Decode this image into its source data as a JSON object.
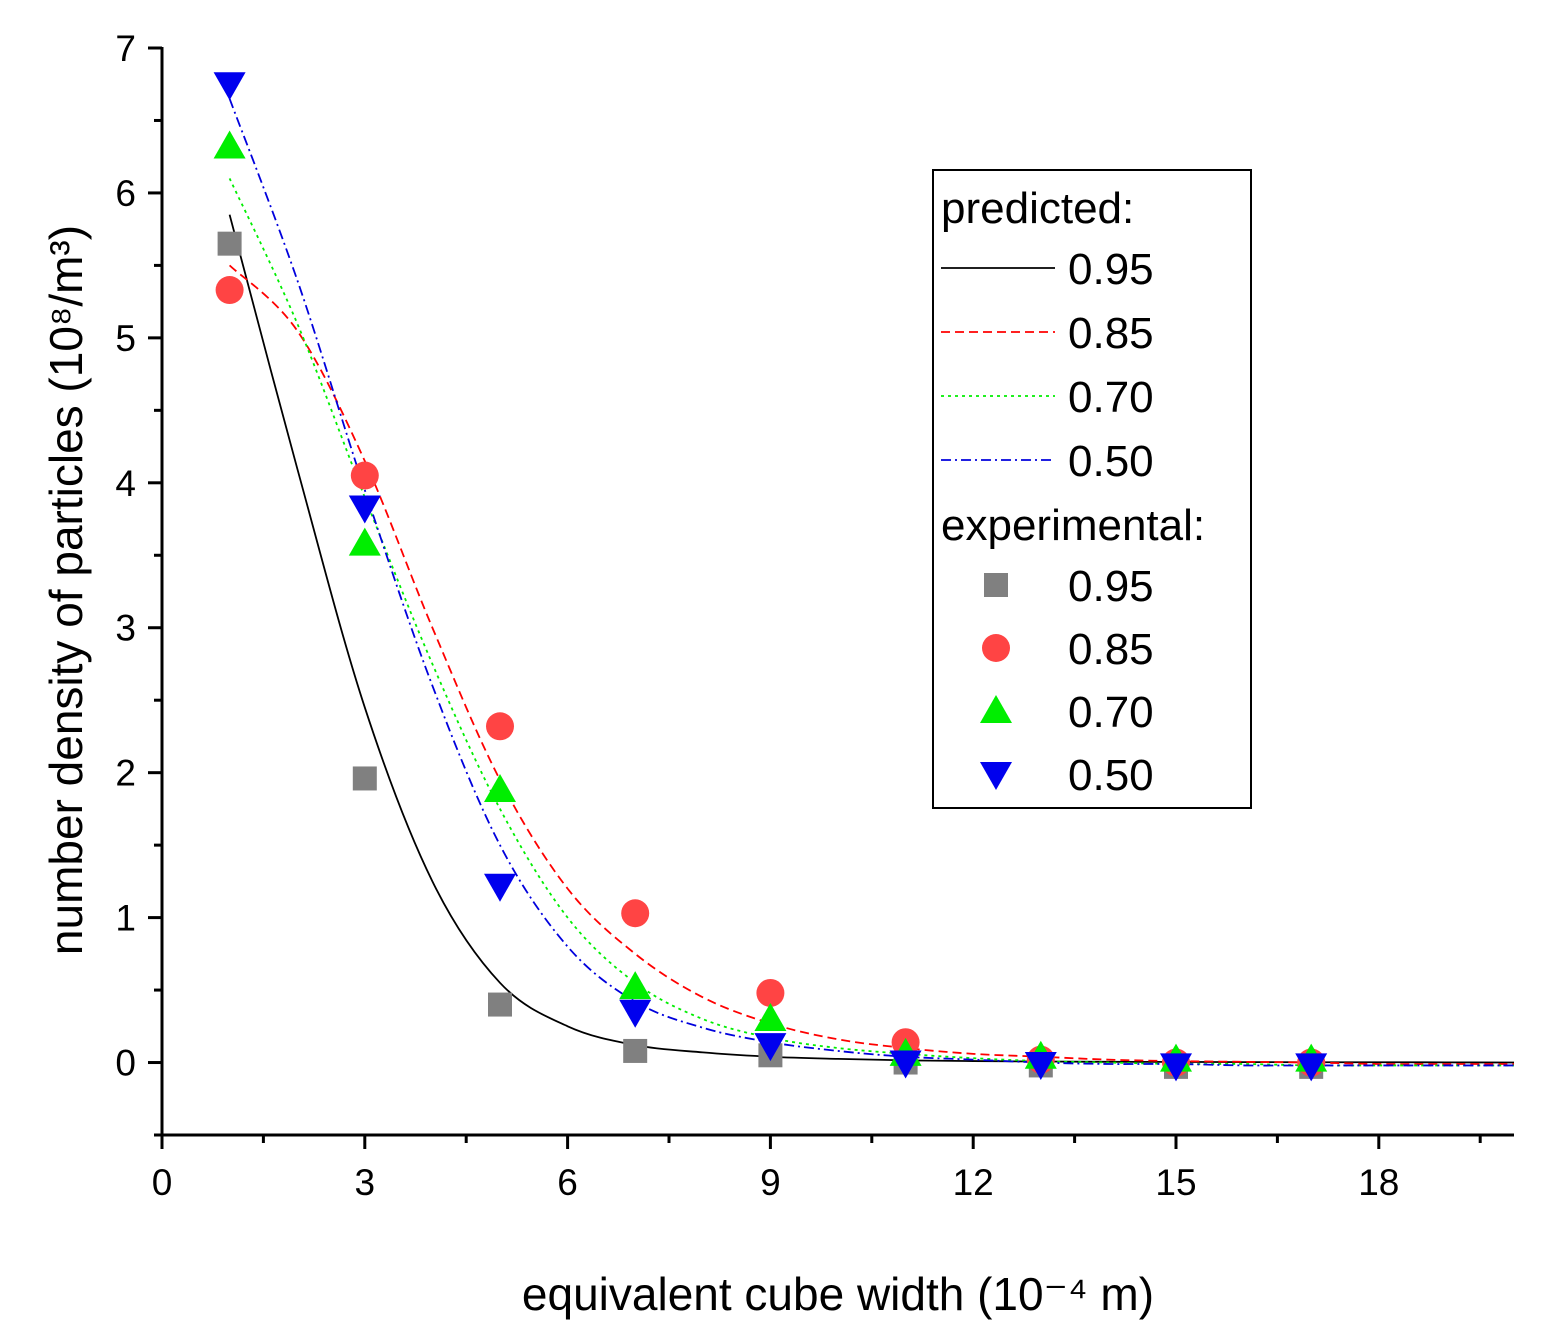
{
  "chart_data": {
    "type": "scatter",
    "title": "",
    "xlabel": "equivalent cube width (10⁻⁴ m)",
    "ylabel": "number density of particles (10⁸/m³)",
    "xlim": [
      0,
      20
    ],
    "ylim": [
      -0.5,
      7
    ],
    "xticks": [
      0,
      3,
      6,
      9,
      12,
      15,
      18
    ],
    "yticks": [
      0,
      1,
      2,
      3,
      4,
      5,
      6,
      7
    ],
    "xtick_labels": [
      "0",
      "3",
      "6",
      "9",
      "12",
      "15",
      "18"
    ],
    "ytick_labels": [
      "0",
      "1",
      "2",
      "3",
      "4",
      "5",
      "6",
      "7"
    ],
    "grid": false,
    "legend_position": "top-right",
    "legend": {
      "predicted_header": "predicted:",
      "experimental_header": "experimental:"
    },
    "predicted": [
      {
        "name": "0.95",
        "color": "#000000",
        "style": "solid",
        "x": [
          1,
          2,
          3,
          4,
          5,
          6,
          7,
          8,
          9,
          10,
          11,
          12,
          13,
          14,
          15,
          16,
          17,
          18,
          19,
          20
        ],
        "y": [
          5.85,
          4.1,
          2.45,
          1.25,
          0.55,
          0.25,
          0.12,
          0.07,
          0.04,
          0.025,
          0.015,
          0.01,
          0.007,
          0.005,
          0.004,
          0.003,
          0.002,
          0.002,
          0.001,
          0.0
        ]
      },
      {
        "name": "0.85",
        "color": "#ff0000",
        "style": "dashed",
        "x": [
          1,
          2,
          3,
          4,
          5,
          6,
          7,
          8,
          9,
          10,
          11,
          12,
          13,
          14,
          15,
          16,
          17,
          18,
          19,
          20
        ],
        "y": [
          5.5,
          5.05,
          4.15,
          3.0,
          1.95,
          1.2,
          0.75,
          0.45,
          0.27,
          0.16,
          0.1,
          0.06,
          0.04,
          0.02,
          0.01,
          0.005,
          0.0,
          -0.01,
          -0.01,
          -0.01
        ]
      },
      {
        "name": "0.70",
        "color": "#00ee00",
        "style": "dotted",
        "x": [
          1,
          2,
          3,
          4,
          5,
          6,
          7,
          8,
          9,
          10,
          11,
          12,
          13,
          14,
          15,
          16,
          17,
          18,
          19,
          20
        ],
        "y": [
          6.1,
          5.1,
          3.9,
          2.75,
          1.75,
          1.0,
          0.55,
          0.3,
          0.17,
          0.1,
          0.06,
          0.03,
          0.01,
          0.0,
          -0.01,
          -0.01,
          -0.02,
          -0.02,
          -0.02,
          -0.02
        ]
      },
      {
        "name": "0.50",
        "color": "#0000dd",
        "style": "dashdot",
        "x": [
          1,
          2,
          3,
          4,
          5,
          6,
          7,
          8,
          9,
          10,
          11,
          12,
          13,
          14,
          15,
          16,
          17,
          18,
          19,
          20
        ],
        "y": [
          6.65,
          5.4,
          3.95,
          2.6,
          1.5,
          0.8,
          0.42,
          0.24,
          0.14,
          0.08,
          0.04,
          0.02,
          0.0,
          -0.01,
          -0.01,
          -0.02,
          -0.02,
          -0.02,
          -0.02,
          -0.02
        ]
      }
    ],
    "experimental": [
      {
        "name": "0.95",
        "color": "#808080",
        "marker": "square",
        "x": [
          1,
          3,
          5,
          7,
          9,
          11,
          13,
          15,
          17
        ],
        "y": [
          5.65,
          1.96,
          0.4,
          0.08,
          0.05,
          0.0,
          -0.02,
          -0.03,
          -0.03
        ]
      },
      {
        "name": "0.85",
        "color": "#ff4444",
        "marker": "circle",
        "x": [
          1,
          3,
          5,
          7,
          9,
          11,
          13,
          15,
          17
        ],
        "y": [
          5.33,
          4.05,
          2.32,
          1.03,
          0.48,
          0.14,
          0.02,
          0.0,
          0.0
        ]
      },
      {
        "name": "0.70",
        "color": "#00ee00",
        "marker": "triangle-up",
        "x": [
          1,
          3,
          5,
          7,
          9,
          11,
          13,
          15,
          17
        ],
        "y": [
          6.32,
          3.58,
          1.88,
          0.52,
          0.3,
          0.06,
          0.04,
          0.02,
          0.02
        ]
      },
      {
        "name": "0.50",
        "color": "#0000ee",
        "marker": "triangle-down",
        "x": [
          1,
          3,
          5,
          7,
          9,
          11,
          13,
          15,
          17
        ],
        "y": [
          6.75,
          3.83,
          1.22,
          0.35,
          0.12,
          0.0,
          -0.01,
          -0.02,
          -0.02
        ]
      }
    ]
  }
}
